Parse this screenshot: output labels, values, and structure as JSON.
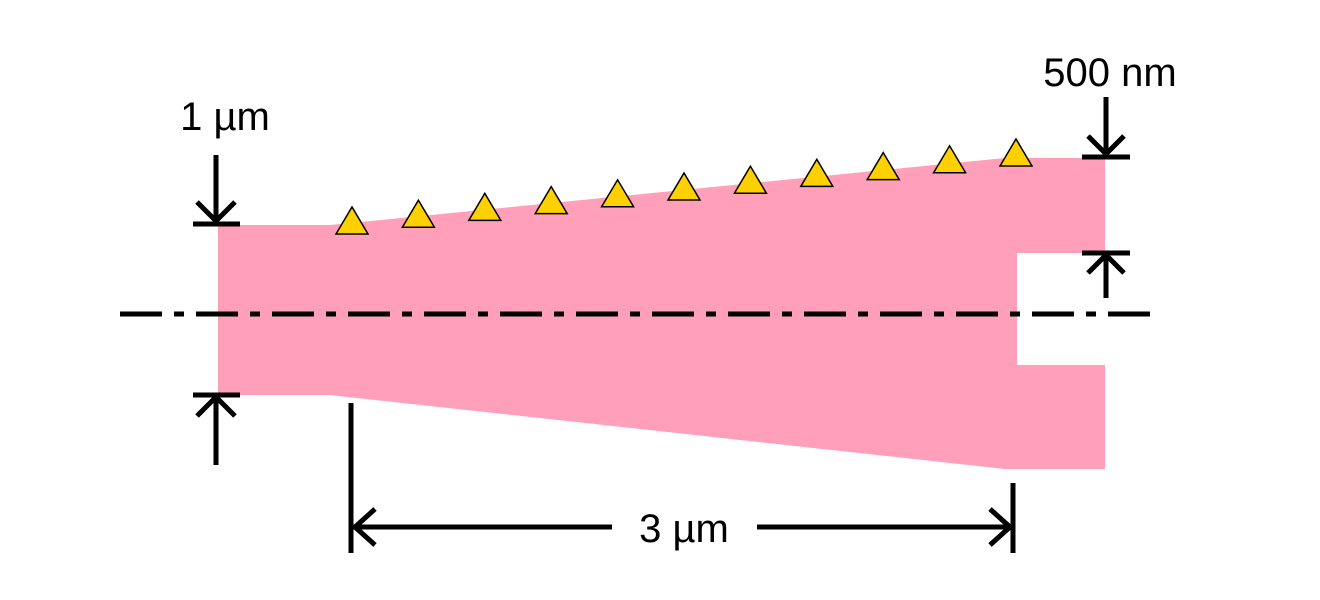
{
  "labels": {
    "left_width": "1 µm",
    "right_width": "500 nm",
    "taper_length": "3 µm"
  },
  "colors": {
    "body_fill": "#ff9fb9",
    "marker_fill": "#ffd000",
    "stroke": "#000000",
    "background": "#ffffff"
  },
  "markers": {
    "shape": "triangle",
    "count": 11
  }
}
